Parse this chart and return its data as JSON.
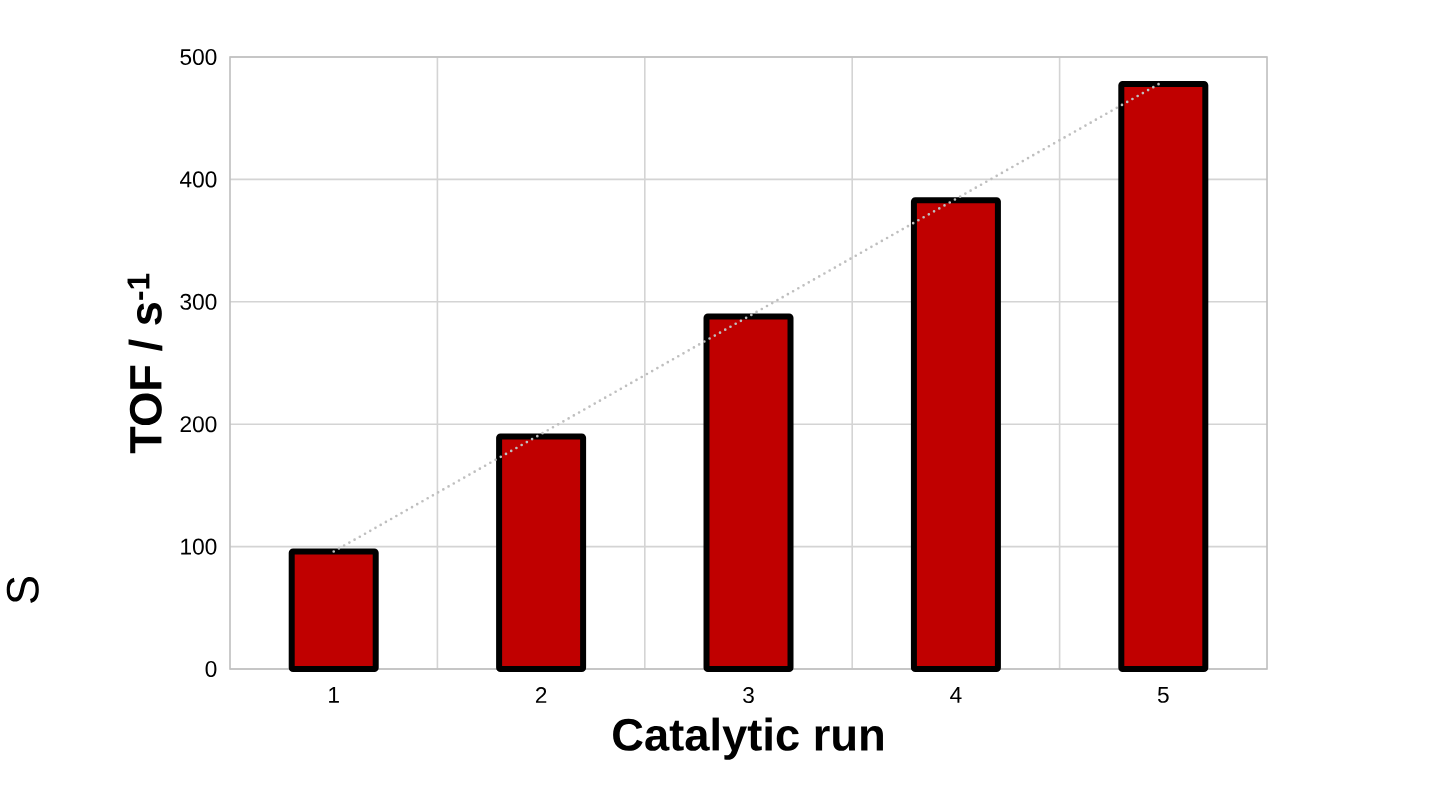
{
  "chart_data": {
    "type": "bar",
    "xlabel": "Catalytic run",
    "ylabel": "TOF / s$^{-1}$",
    "categories": [
      "1",
      "2",
      "3",
      "4",
      "5"
    ],
    "ylim": [
      0,
      500
    ],
    "yticks": [
      0,
      100,
      200,
      300,
      400,
      500
    ],
    "grid": true,
    "series": [
      {
        "color": "#c00000",
        "values": [
          96,
          190,
          288,
          383,
          478
        ]
      },
      {
        "type": "line",
        "color": "#bfbfbf",
        "line_style": "dotted",
        "marker": "none",
        "x": [
          "1",
          "5"
        ],
        "values": [
          96,
          480
        ]
      }
    ],
    "annotations": [
      "S"
    ]
  }
}
